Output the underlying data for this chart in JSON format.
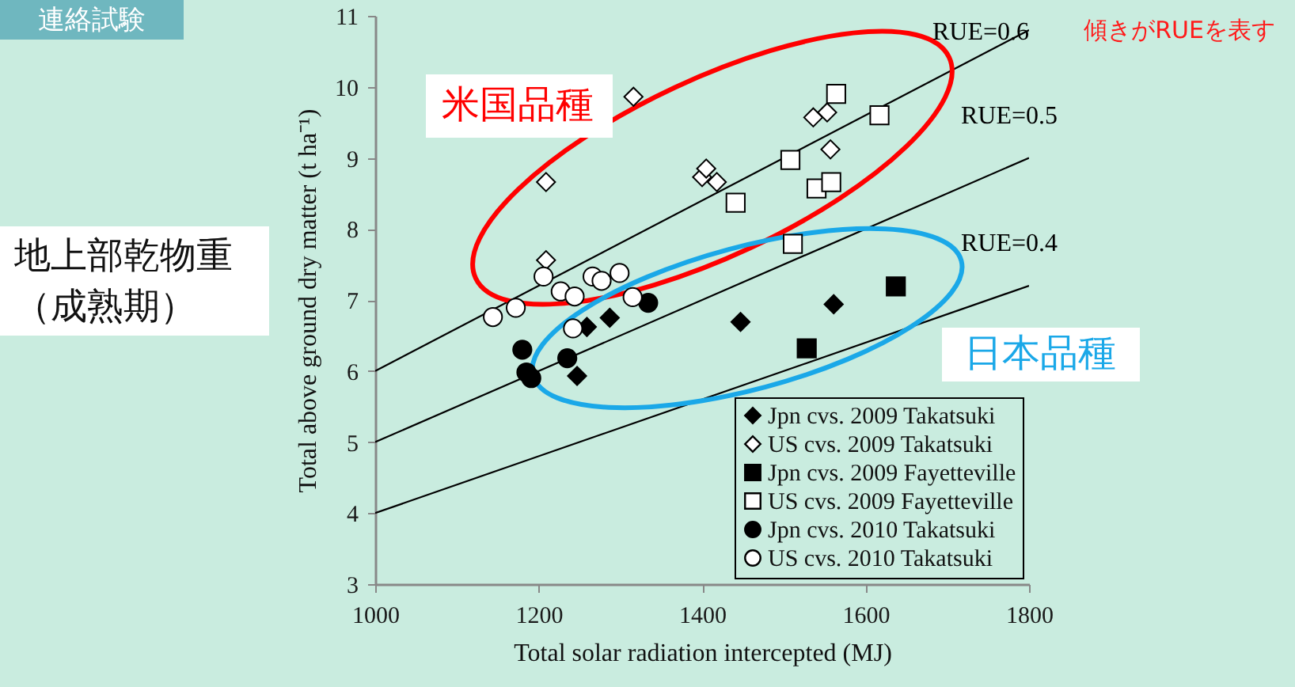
{
  "chart_data": {
    "type": "scatter",
    "title": "連絡試験",
    "xlabel": "Total solar radiation intercepted (MJ)",
    "ylabel": "Total above ground dry matter (t ha⁻¹)",
    "xlim": [
      1000,
      1800
    ],
    "xticks": [
      1000,
      1200,
      1400,
      1600,
      1800
    ],
    "ylim": [
      3,
      11
    ],
    "yticks": [
      3,
      4,
      5,
      6,
      7,
      8,
      9,
      10,
      11
    ],
    "legend": "bottom right",
    "annotations": [
      "傾きがRUEを表す",
      "米国品種",
      "日本品種",
      "地上部乾物重（成熟期）"
    ],
    "series": [
      {
        "name": "RUE=0.6",
        "type": "line",
        "color": "#000000",
        "x": [
          1000,
          1800
        ],
        "values": [
          6,
          10.8
        ]
      },
      {
        "name": "RUE=0.5",
        "type": "line",
        "color": "#000000",
        "x": [
          1000,
          1800
        ],
        "values": [
          5,
          9
        ]
      },
      {
        "name": "RUE=0.4",
        "type": "line",
        "color": "#000000",
        "x": [
          1000,
          1800
        ],
        "values": [
          4,
          7.2
        ]
      },
      {
        "name": "Jpn cvs. 2009 Takatsuki",
        "marker": "diamond",
        "color": "#000000",
        "x": [
          1247,
          1259,
          1287,
          1447,
          1561
        ],
        "values": [
          5.93,
          6.62,
          6.75,
          6.69,
          6.94
        ]
      },
      {
        "name": "US cvs. 2009 Takatsuki",
        "marker": "diamond",
        "color": "#ffffff",
        "x": [
          1209,
          1209,
          1316,
          1400,
          1405,
          1418,
          1536,
          1553,
          1557
        ],
        "values": [
          7.56,
          8.66,
          9.86,
          8.73,
          8.85,
          8.66,
          9.57,
          9.64,
          9.12
        ]
      },
      {
        "name": "Jpn cvs. 2009 Fayetteville",
        "marker": "square",
        "color": "#000000",
        "x": [
          1528,
          1637
        ],
        "values": [
          6.32,
          7.19
        ]
      },
      {
        "name": "US cvs. 2009 Fayetteville",
        "marker": "square",
        "color": "#ffffff",
        "x": [
          1441,
          1508,
          1511,
          1540,
          1558,
          1564,
          1617
        ],
        "values": [
          8.37,
          8.97,
          7.79,
          8.57,
          8.66,
          9.9,
          9.6
        ]
      },
      {
        "name": "Jpn cvs. 2010 Takatsuki",
        "marker": "circle",
        "color": "#000000",
        "x": [
          1180,
          1185,
          1191,
          1235,
          1334
        ],
        "values": [
          6.3,
          5.98,
          5.9,
          6.18,
          6.96
        ]
      },
      {
        "name": "US cvs. 2010 Takatsuki",
        "marker": "circle",
        "color": "#ffffff",
        "x": [
          1144,
          1172,
          1206,
          1227,
          1242,
          1244,
          1266,
          1277,
          1299,
          1315
        ],
        "values": [
          6.76,
          6.89,
          7.33,
          7.12,
          6.6,
          7.05,
          7.33,
          7.27,
          7.38,
          7.04
        ]
      }
    ]
  }
}
